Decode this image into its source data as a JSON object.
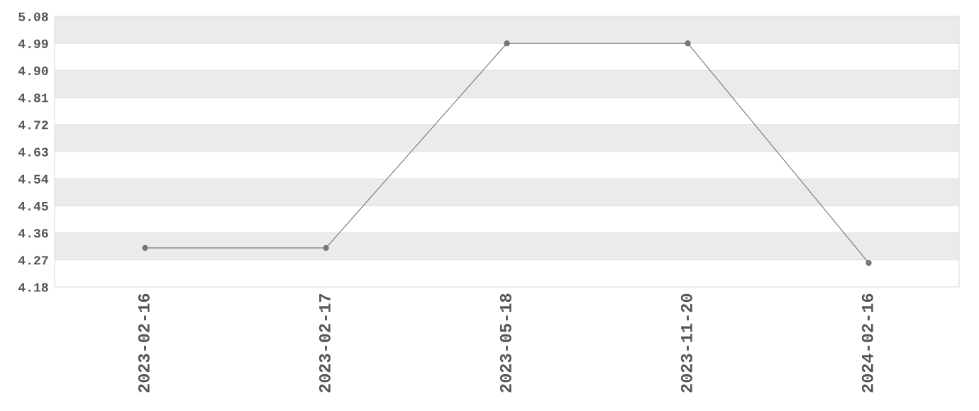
{
  "chart_data": {
    "type": "line",
    "categories": [
      "2023-02-16",
      "2023-02-17",
      "2023-05-18",
      "2023-11-20",
      "2024-02-16"
    ],
    "series": [
      {
        "color": "#777777",
        "values": [
          4.31,
          4.31,
          4.99,
          4.99,
          4.26
        ]
      }
    ],
    "ylim": [
      4.18,
      5.08
    ],
    "yticks": [
      {
        "value": 4.18,
        "label": "4.18"
      },
      {
        "value": 4.27,
        "label": "4.27"
      },
      {
        "value": 4.36,
        "label": "4.36"
      },
      {
        "value": 4.45,
        "label": "4.45"
      },
      {
        "value": 4.54,
        "label": "4.54"
      },
      {
        "value": 4.63,
        "label": "4.63"
      },
      {
        "value": 4.72,
        "label": "4.72"
      },
      {
        "value": 4.81,
        "label": "4.81"
      },
      {
        "value": 4.9,
        "label": "4.90"
      },
      {
        "value": 4.99,
        "label": "4.99"
      },
      {
        "value": 5.08,
        "label": "5.08"
      }
    ],
    "grid": "y",
    "marker": "circle",
    "line_style": "solid"
  }
}
